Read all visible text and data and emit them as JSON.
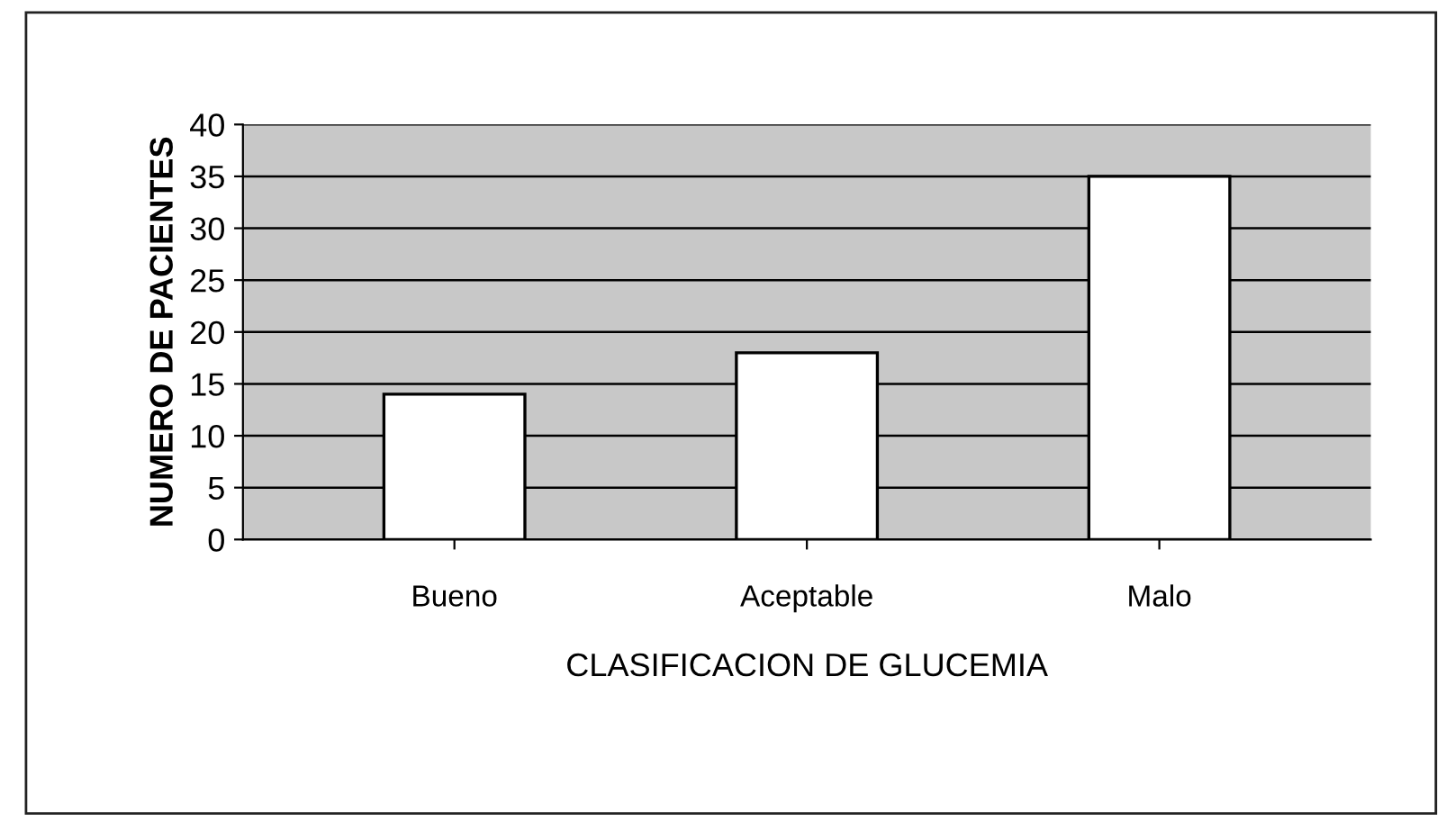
{
  "chart_data": {
    "type": "bar",
    "xlabel": "CLASIFICACION DE GLUCEMIA",
    "ylabel": "NUMERO DE PACIENTES",
    "categories": [
      "Bueno",
      "Aceptable",
      "Malo"
    ],
    "values": [
      14,
      18,
      35
    ],
    "color": "#ffffff",
    "ylim": [
      0,
      40
    ],
    "yticks": [
      0,
      5,
      10,
      15,
      20,
      25,
      30,
      35,
      40
    ],
    "grid": "y",
    "legend": false
  }
}
